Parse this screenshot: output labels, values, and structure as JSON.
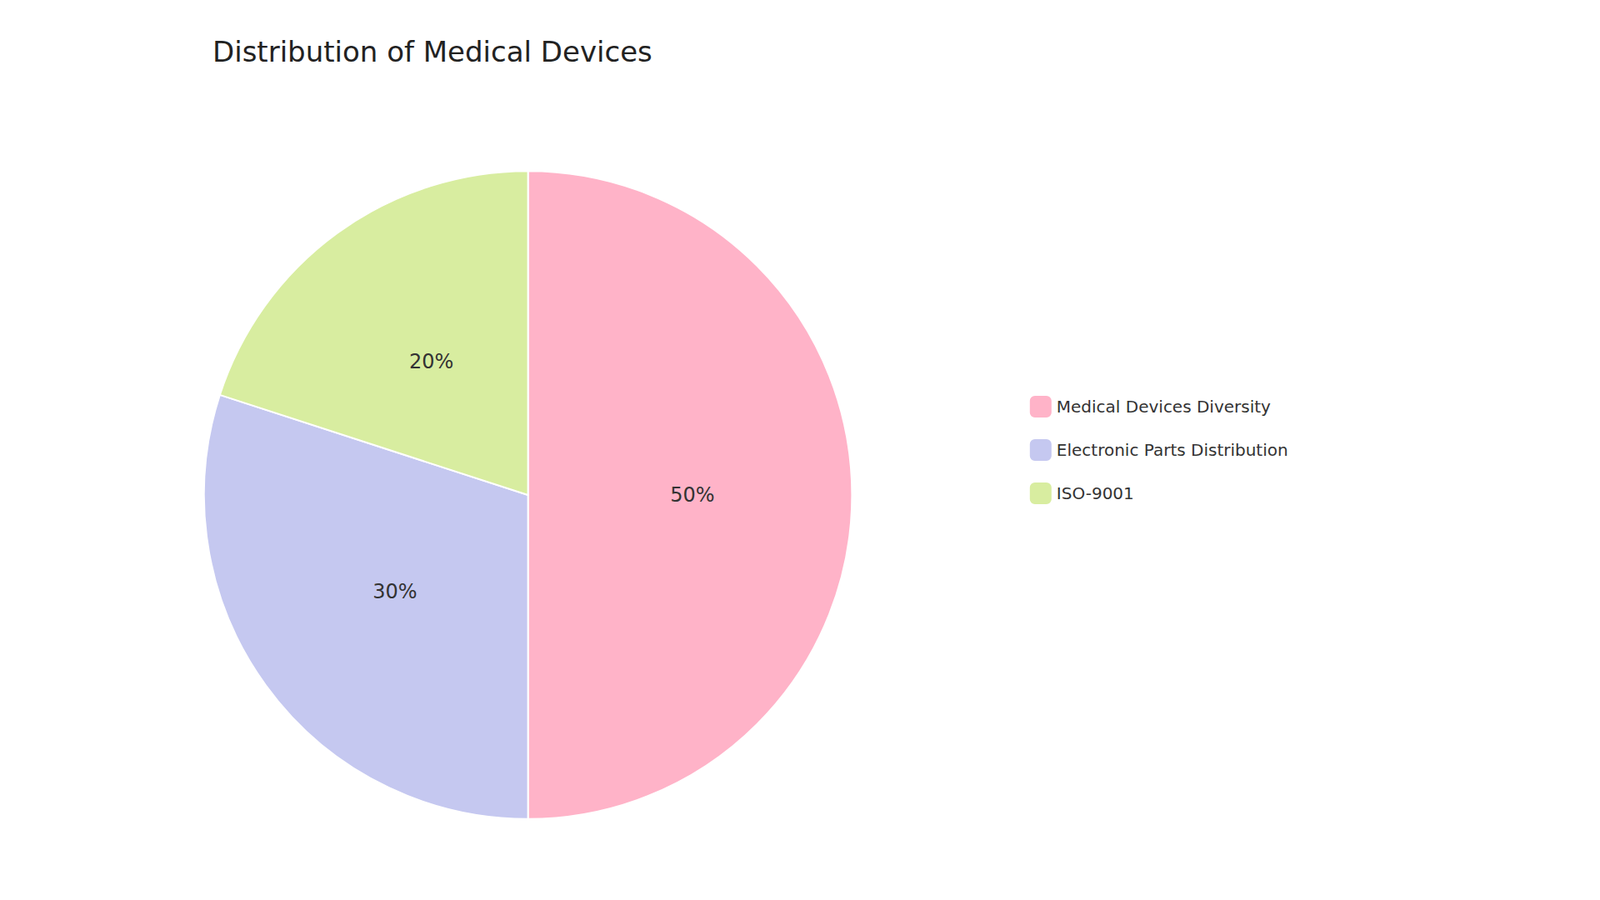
{
  "chart_data": {
    "type": "pie",
    "title": "Distribution of Medical Devices",
    "categories": [
      "Medical Devices Diversity",
      "Electronic Parts Distribution",
      "ISO-9001"
    ],
    "values": [
      50,
      30,
      20
    ],
    "value_labels": [
      "50%",
      "30%",
      "20%"
    ],
    "colors": [
      "#FFB3C8",
      "#C5C8F0",
      "#D8EDA0"
    ],
    "legend": "right",
    "data_labels": true
  }
}
